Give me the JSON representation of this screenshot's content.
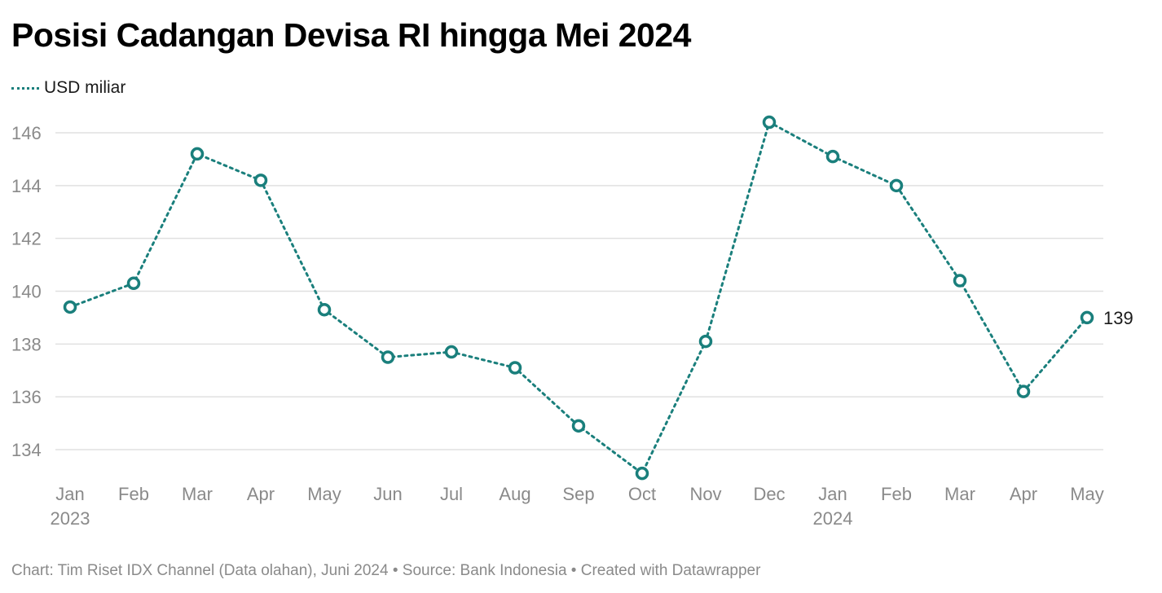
{
  "title": "Posisi Cadangan Devisa RI hingga Mei 2024",
  "legend": {
    "label": "USD miliar"
  },
  "colors": {
    "series": "#1a7f7c",
    "grid": "#e0e0e0",
    "tick": "#8a8a8a",
    "text": "#1a1a1a"
  },
  "footer": {
    "text": "Chart: Tim Riset IDX Channel (Data olahan), Juni 2024 • Source: Bank Indonesia • Created with Datawrapper"
  },
  "chart_data": {
    "type": "line",
    "title": "Posisi Cadangan Devisa RI hingga Mei 2024",
    "xlabel": "",
    "ylabel": "",
    "x": [
      "Jan",
      "Feb",
      "Mar",
      "Apr",
      "May",
      "Jun",
      "Jul",
      "Aug",
      "Sep",
      "Oct",
      "Nov",
      "Dec",
      "Jan",
      "Feb",
      "Mar",
      "Apr",
      "May"
    ],
    "year_labels": [
      {
        "index": 0,
        "label": "2023"
      },
      {
        "index": 12,
        "label": "2024"
      }
    ],
    "series": [
      {
        "name": "USD miliar",
        "values": [
          139.4,
          140.3,
          145.2,
          144.2,
          139.3,
          137.5,
          137.7,
          137.1,
          134.9,
          133.1,
          138.1,
          146.4,
          145.1,
          144.0,
          140.4,
          136.2,
          139.0
        ]
      }
    ],
    "end_label": "139",
    "yticks": [
      134,
      136,
      138,
      140,
      142,
      144,
      146
    ],
    "ylim": [
      132.9,
      146.4
    ],
    "grid": true,
    "legend_position": "top-left"
  }
}
